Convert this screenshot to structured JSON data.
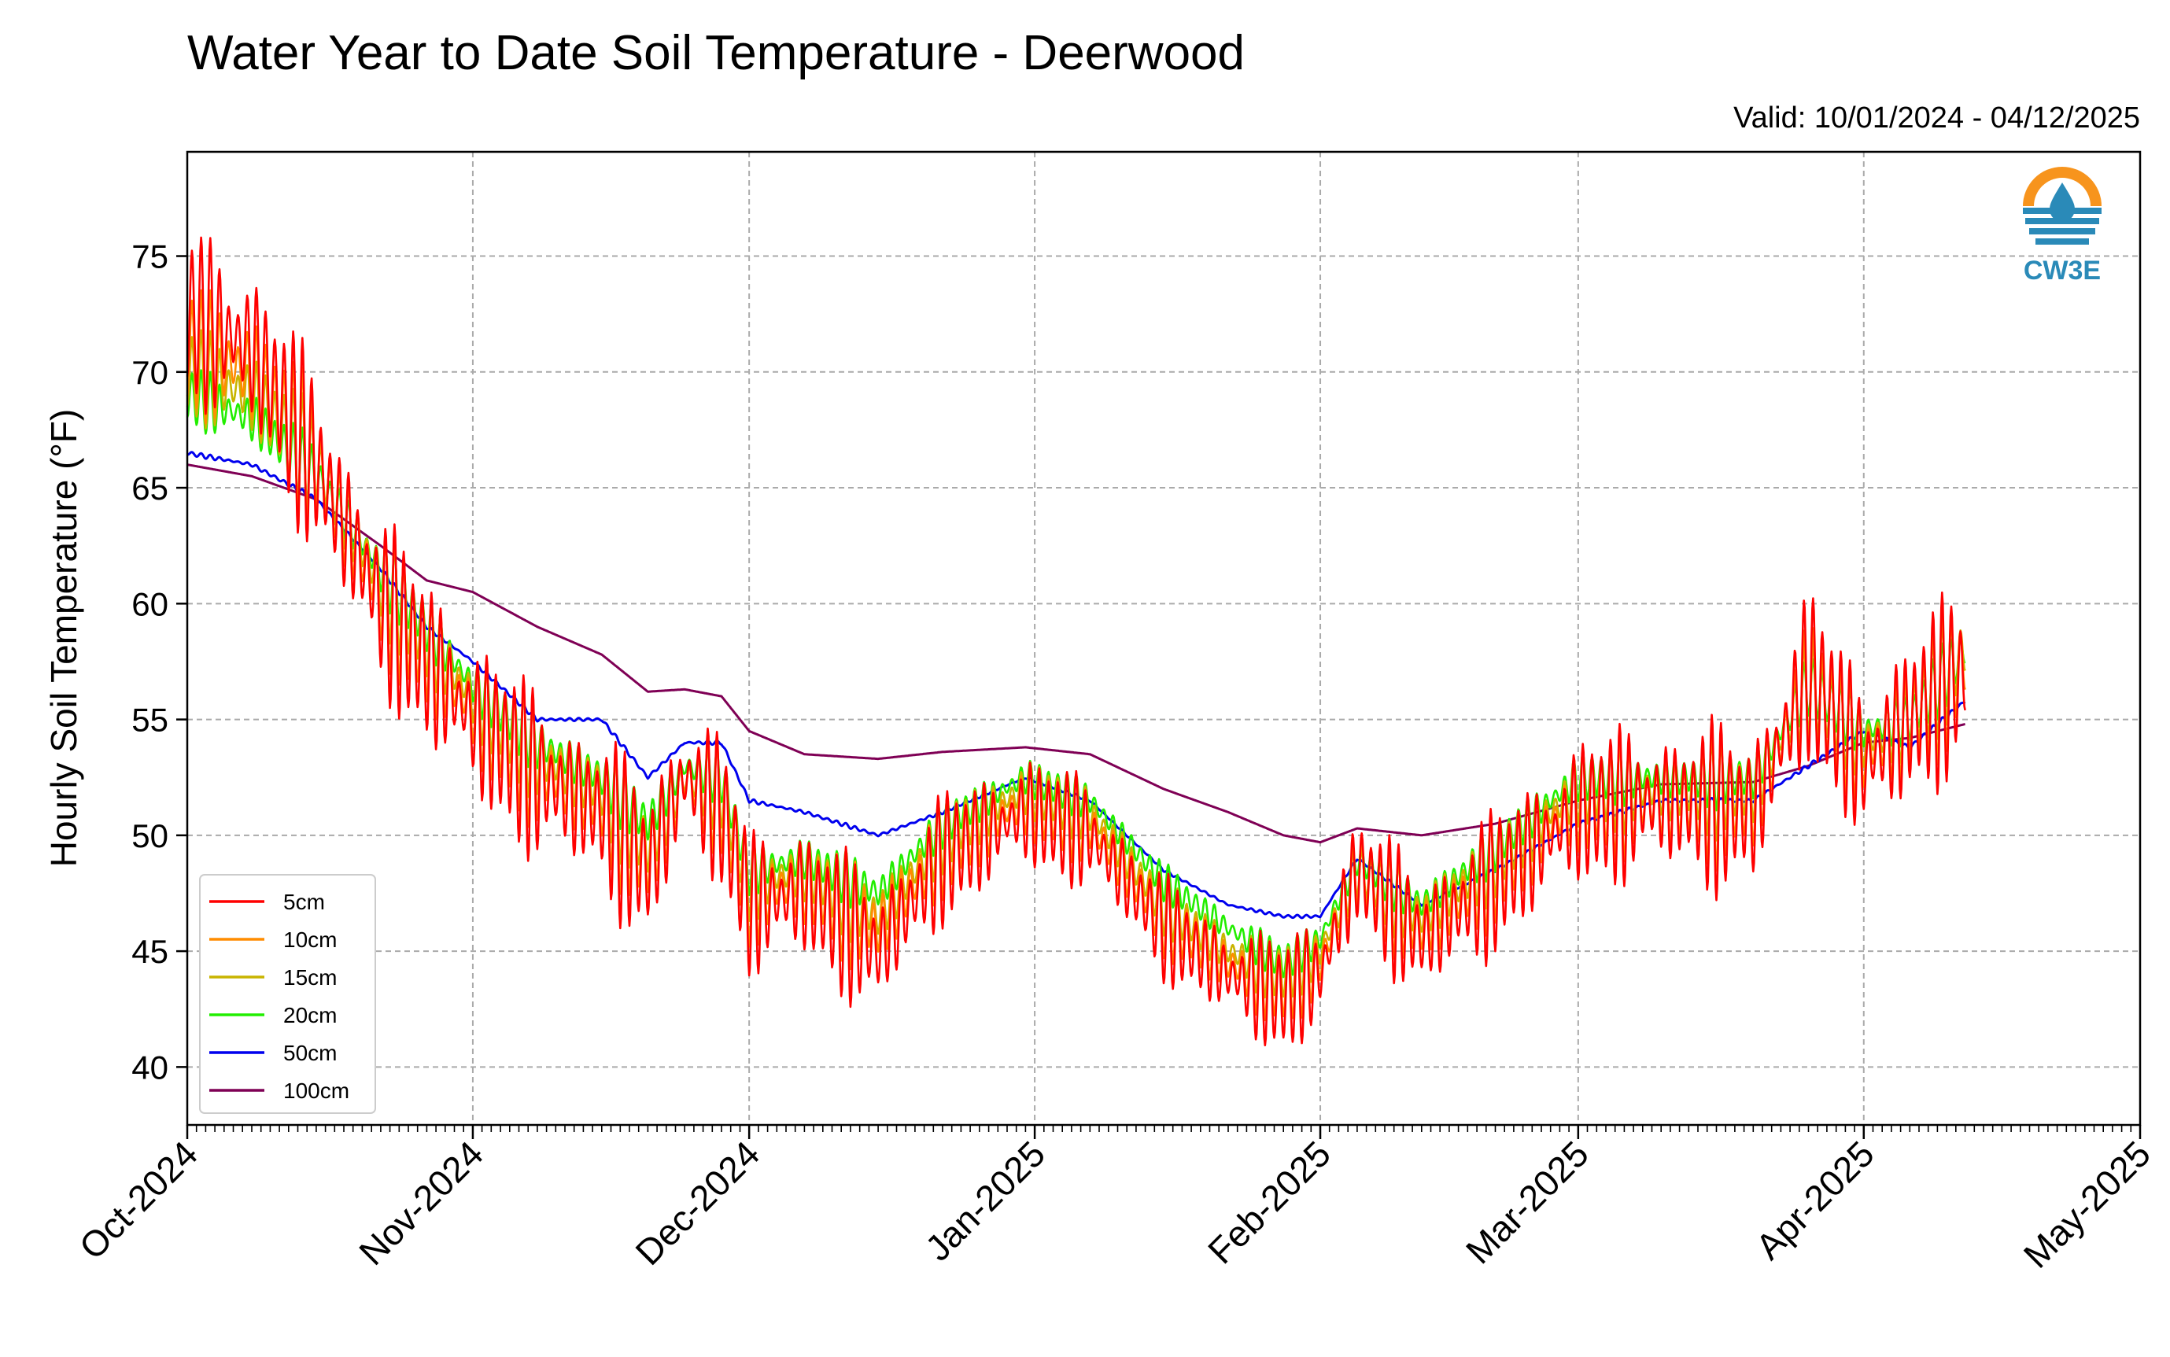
{
  "chart_data": {
    "type": "line",
    "title": "Water Year to Date Soil Temperature - Deerwood",
    "subtitle": "Valid: 10/01/2024 - 04/12/2025",
    "xlabel": "",
    "ylabel": "Hourly Soil Temperature (°F)",
    "ylim": [
      37.5,
      79.5
    ],
    "yticks": [
      40,
      45,
      50,
      55,
      60,
      65,
      70,
      75
    ],
    "xlim": [
      "2024-10-01",
      "2025-05-01"
    ],
    "xtick_labels": [
      "Oct-2024",
      "Nov-2024",
      "Dec-2024",
      "Jan-2025",
      "Feb-2025",
      "Mar-2025",
      "Apr-2025",
      "May-2025"
    ],
    "grid": true,
    "legend_position": "lower-left",
    "logo_text": "CW3E",
    "series": [
      {
        "name": "5cm",
        "color": "#ff0000",
        "x": [
          "2024-10-01",
          "2024-10-08",
          "2024-10-15",
          "2024-10-22",
          "2024-10-27",
          "2024-11-01",
          "2024-11-08",
          "2024-11-15",
          "2024-11-20",
          "2024-11-24",
          "2024-11-28",
          "2024-12-01",
          "2024-12-07",
          "2024-12-15",
          "2024-12-22",
          "2024-12-31",
          "2025-01-07",
          "2025-01-15",
          "2025-01-22",
          "2025-01-28",
          "2025-02-01",
          "2025-02-05",
          "2025-02-12",
          "2025-02-20",
          "2025-03-01",
          "2025-03-10",
          "2025-03-20",
          "2025-03-26",
          "2025-04-01",
          "2025-04-06",
          "2025-04-12"
        ],
        "values": [
          72.5,
          71,
          66,
          60,
          57.5,
          55,
          52.5,
          51,
          48.5,
          52.5,
          51,
          47,
          47.5,
          45,
          49,
          51,
          50,
          46,
          44,
          43,
          44,
          48.5,
          45.5,
          48,
          51,
          51.5,
          51,
          57,
          53,
          55,
          57
        ]
      },
      {
        "name": "10cm",
        "color": "#ff8c00",
        "x": [
          "2024-10-01",
          "2024-10-08",
          "2024-10-15",
          "2024-10-22",
          "2024-10-27",
          "2024-11-01",
          "2024-11-08",
          "2024-11-15",
          "2024-11-20",
          "2024-11-24",
          "2024-11-28",
          "2024-12-01",
          "2024-12-07",
          "2024-12-15",
          "2024-12-22",
          "2024-12-31",
          "2025-01-07",
          "2025-01-15",
          "2025-01-22",
          "2025-01-28",
          "2025-02-01",
          "2025-02-05",
          "2025-02-12",
          "2025-02-20",
          "2025-03-01",
          "2025-03-10",
          "2025-03-20",
          "2025-03-26",
          "2025-04-01",
          "2025-04-06",
          "2025-04-12"
        ],
        "values": [
          71,
          70,
          66,
          60.5,
          58,
          55.5,
          53,
          51.5,
          49,
          52.5,
          51.5,
          47.5,
          48,
          46,
          49.5,
          51.5,
          50.5,
          46.5,
          44.5,
          43.5,
          44.5,
          48.5,
          46,
          48.5,
          51.5,
          51.5,
          51.5,
          56.5,
          53.5,
          55,
          57.5
        ]
      },
      {
        "name": "15cm",
        "color": "#c8b400",
        "x": [
          "2024-10-01",
          "2024-10-08",
          "2024-10-15",
          "2024-10-22",
          "2024-10-27",
          "2024-11-01",
          "2024-11-08",
          "2024-11-15",
          "2024-11-20",
          "2024-11-24",
          "2024-11-28",
          "2024-12-01",
          "2024-12-07",
          "2024-12-15",
          "2024-12-22",
          "2024-12-31",
          "2025-01-07",
          "2025-01-15",
          "2025-01-22",
          "2025-01-28",
          "2025-02-01",
          "2025-02-05",
          "2025-02-12",
          "2025-02-20",
          "2025-03-01",
          "2025-03-10",
          "2025-03-20",
          "2025-03-26",
          "2025-04-01",
          "2025-04-06",
          "2025-04-12"
        ],
        "values": [
          70,
          69,
          66,
          61,
          58.5,
          56,
          53.5,
          52,
          49.5,
          52.5,
          52,
          48,
          48.5,
          46.5,
          50,
          52,
          51,
          47,
          45,
          44,
          45,
          48.5,
          46.5,
          49,
          52,
          52,
          52,
          56.5,
          54,
          55,
          58
        ]
      },
      {
        "name": "20cm",
        "color": "#22ee00",
        "x": [
          "2024-10-01",
          "2024-10-08",
          "2024-10-15",
          "2024-10-22",
          "2024-10-27",
          "2024-11-01",
          "2024-11-08",
          "2024-11-15",
          "2024-11-20",
          "2024-11-24",
          "2024-11-28",
          "2024-12-01",
          "2024-12-07",
          "2024-12-15",
          "2024-12-22",
          "2024-12-31",
          "2025-01-07",
          "2025-01-15",
          "2025-01-22",
          "2025-01-28",
          "2025-02-01",
          "2025-02-05",
          "2025-02-12",
          "2025-02-20",
          "2025-03-01",
          "2025-03-10",
          "2025-03-20",
          "2025-03-26",
          "2025-04-01",
          "2025-04-06",
          "2025-04-12"
        ],
        "values": [
          69,
          68,
          65.5,
          61.5,
          59,
          56.5,
          54,
          52.5,
          50.5,
          53,
          52.5,
          48.5,
          49,
          47.5,
          50.5,
          52.5,
          51.5,
          48,
          46,
          44.5,
          45.5,
          49,
          47,
          49.5,
          52.5,
          52.5,
          52.5,
          56.5,
          54.5,
          55,
          58
        ]
      },
      {
        "name": "50cm",
        "color": "#0000ee",
        "x": [
          "2024-10-01",
          "2024-10-08",
          "2024-10-15",
          "2024-10-22",
          "2024-10-27",
          "2024-11-01",
          "2024-11-08",
          "2024-11-15",
          "2024-11-20",
          "2024-11-24",
          "2024-11-28",
          "2024-12-01",
          "2024-12-07",
          "2024-12-15",
          "2024-12-22",
          "2024-12-31",
          "2025-01-07",
          "2025-01-15",
          "2025-01-22",
          "2025-01-28",
          "2025-02-01",
          "2025-02-05",
          "2025-02-12",
          "2025-02-20",
          "2025-03-01",
          "2025-03-10",
          "2025-03-20",
          "2025-03-26",
          "2025-04-01",
          "2025-04-06",
          "2025-04-12"
        ],
        "values": [
          66.5,
          66,
          64.5,
          61.5,
          59,
          57.5,
          55,
          55,
          52.5,
          54,
          54,
          51.5,
          51,
          50,
          51,
          52.5,
          51.5,
          48.5,
          47,
          46.5,
          46.5,
          49,
          47,
          48.5,
          50.5,
          51.5,
          51.5,
          53,
          54.5,
          53.8,
          55.8
        ]
      },
      {
        "name": "100cm",
        "color": "#7f0055",
        "x": [
          "2024-10-01",
          "2024-10-08",
          "2024-10-15",
          "2024-10-22",
          "2024-10-27",
          "2024-11-01",
          "2024-11-08",
          "2024-11-15",
          "2024-11-20",
          "2024-11-24",
          "2024-11-28",
          "2024-12-01",
          "2024-12-07",
          "2024-12-15",
          "2024-12-22",
          "2024-12-31",
          "2025-01-07",
          "2025-01-15",
          "2025-01-22",
          "2025-01-28",
          "2025-02-01",
          "2025-02-05",
          "2025-02-12",
          "2025-02-20",
          "2025-03-01",
          "2025-03-10",
          "2025-03-20",
          "2025-03-26",
          "2025-04-01",
          "2025-04-06",
          "2025-04-12"
        ],
        "values": [
          66,
          65.5,
          64.5,
          62.5,
          61,
          60.5,
          59,
          57.8,
          56.2,
          56.3,
          56,
          54.5,
          53.5,
          53.3,
          53.6,
          53.8,
          53.5,
          52,
          51,
          50,
          49.7,
          50.3,
          50,
          50.5,
          51.5,
          52.2,
          52.3,
          53,
          54,
          54.2,
          54.8
        ]
      }
    ]
  }
}
